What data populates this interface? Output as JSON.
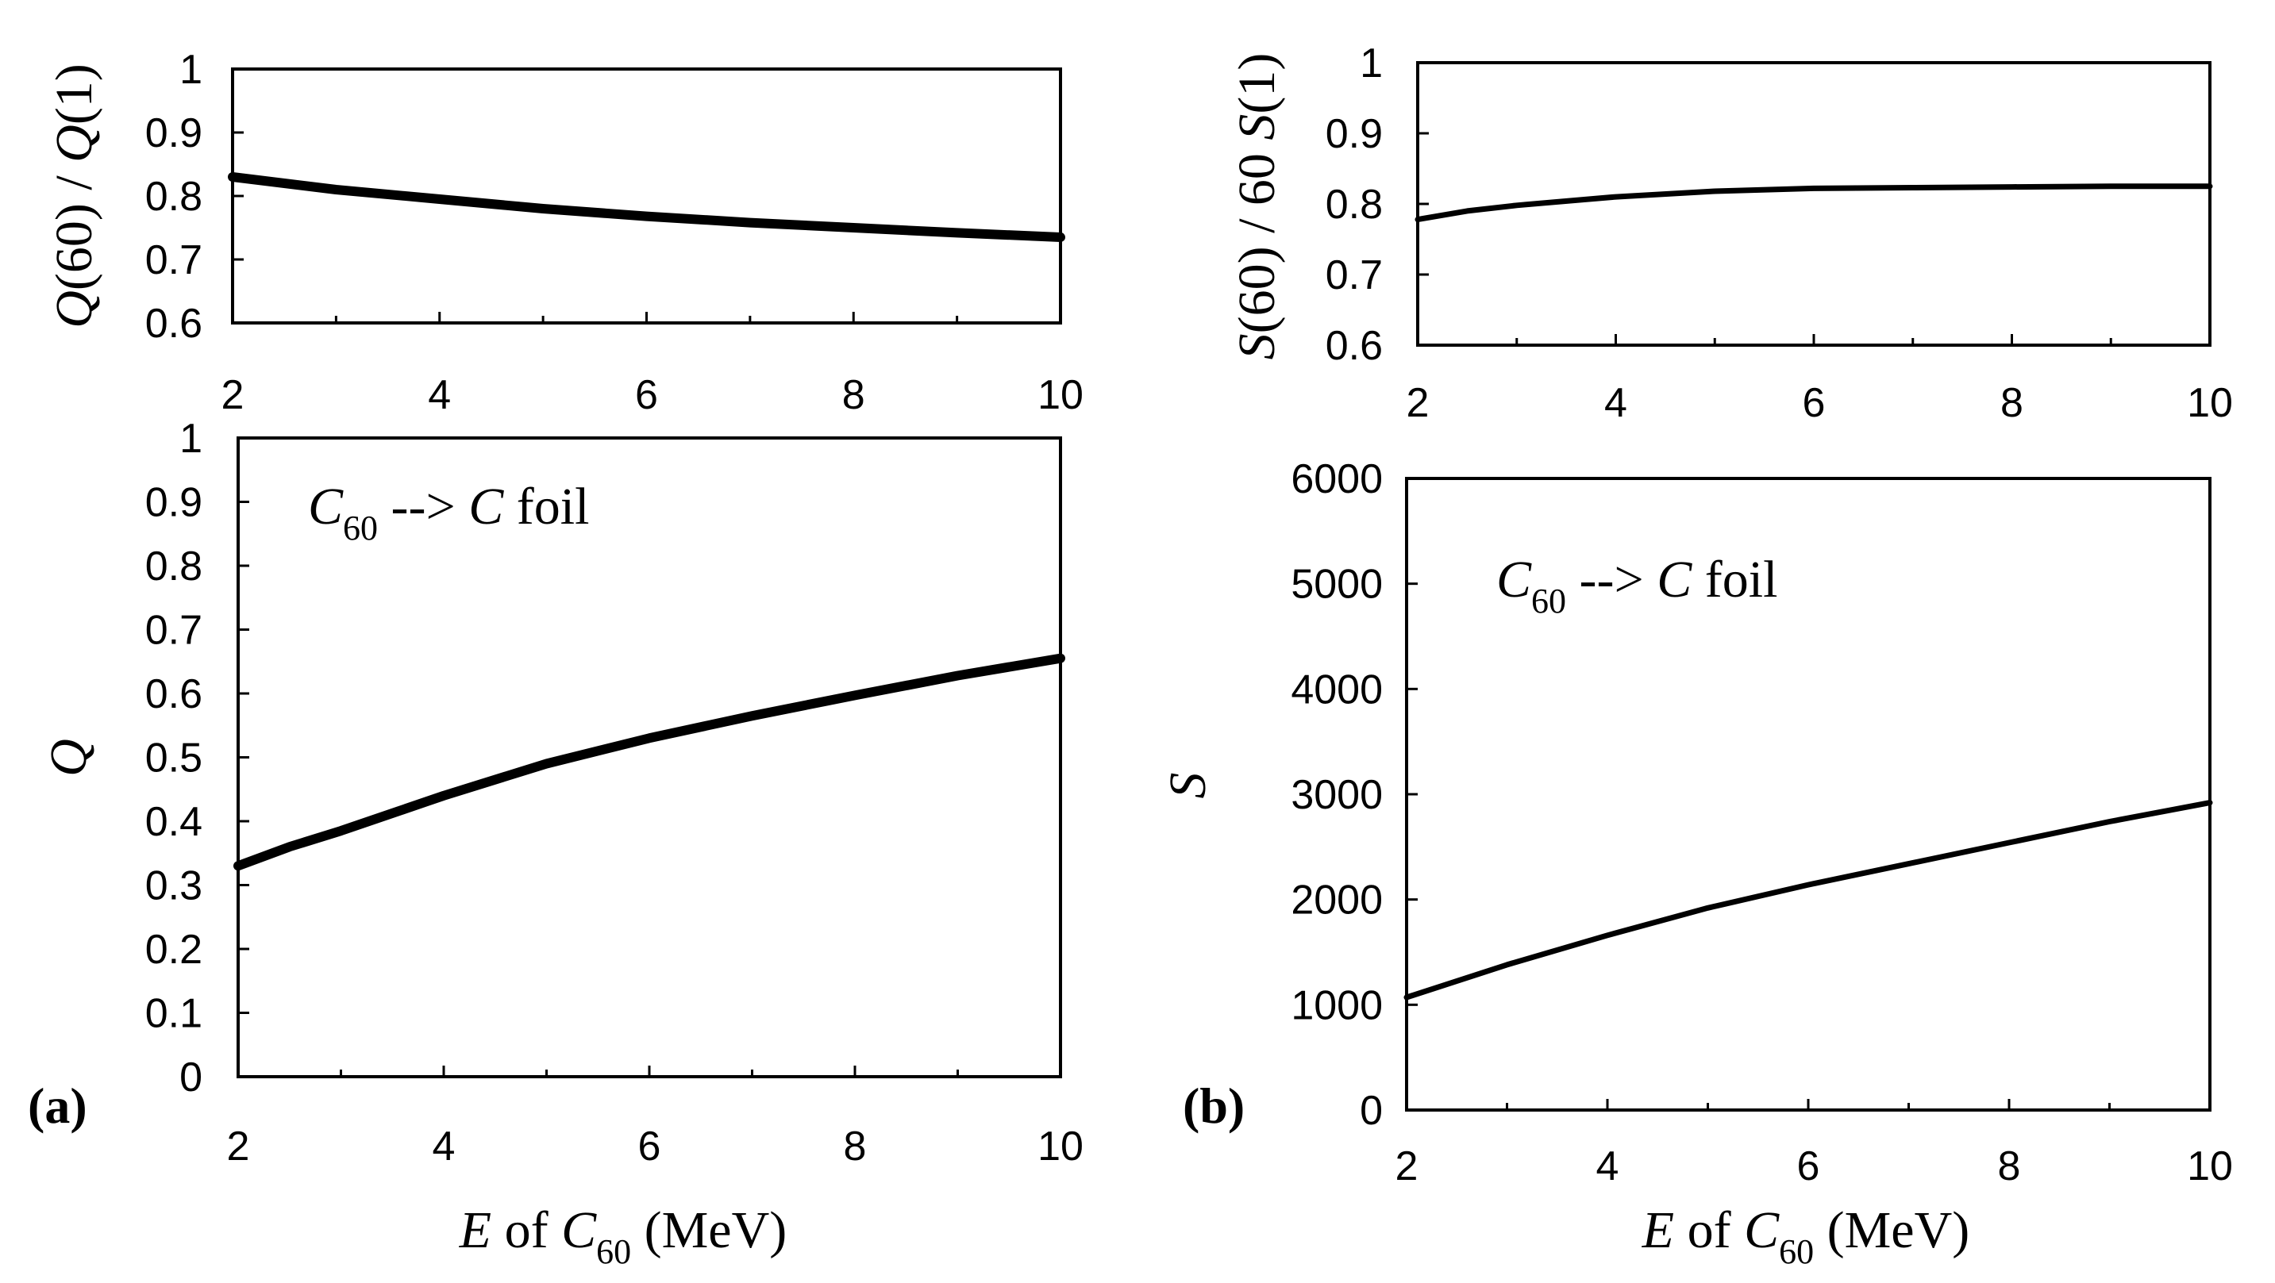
{
  "panels": {
    "a": {
      "label": "(a)"
    },
    "b": {
      "label": "(b)"
    }
  },
  "chart_data": [
    {
      "id": "a-top",
      "type": "line",
      "title": "",
      "xlabel": "",
      "ylabel_parts": [
        "Q",
        "(60) / ",
        "Q",
        "(1)"
      ],
      "xlim": [
        2,
        10
      ],
      "ylim": [
        0.6,
        1
      ],
      "xticks": [
        2,
        4,
        6,
        8,
        10
      ],
      "yticks": [
        0.6,
        0.7,
        0.8,
        0.9,
        1
      ],
      "ytick_labels": [
        "0.6",
        "0.7",
        "0.8",
        "0.9",
        "1"
      ],
      "series": [
        {
          "name": "Q(60)/Q(1)",
          "x": [
            2,
            3,
            4,
            5,
            6,
            7,
            8,
            9,
            10
          ],
          "y": [
            0.83,
            0.81,
            0.795,
            0.78,
            0.768,
            0.758,
            0.75,
            0.742,
            0.735
          ]
        }
      ]
    },
    {
      "id": "a-bottom",
      "type": "line",
      "title": "",
      "xlabel_parts": [
        "E",
        " of ",
        "C",
        "60",
        " (MeV)"
      ],
      "ylabel": "Q",
      "xlim": [
        2,
        10
      ],
      "ylim": [
        0,
        1
      ],
      "xticks": [
        2,
        4,
        6,
        8,
        10
      ],
      "yticks": [
        0,
        0.1,
        0.2,
        0.3,
        0.4,
        0.5,
        0.6,
        0.7,
        0.8,
        0.9,
        1
      ],
      "ytick_labels": [
        "0",
        "0.1",
        "0.2",
        "0.3",
        "0.4",
        "0.5",
        "0.6",
        "0.7",
        "0.8",
        "0.9",
        "1"
      ],
      "annotation_parts": [
        "C",
        "60",
        " --> ",
        "C",
        " foil"
      ],
      "series": [
        {
          "name": "Q",
          "x": [
            2,
            2.5,
            3,
            4,
            5,
            6,
            7,
            8,
            9,
            10
          ],
          "y": [
            0.33,
            0.36,
            0.385,
            0.44,
            0.49,
            0.53,
            0.565,
            0.597,
            0.628,
            0.655
          ]
        }
      ]
    },
    {
      "id": "b-top",
      "type": "line",
      "title": "",
      "xlabel": "",
      "ylabel_parts": [
        "S",
        "(60) / 60 ",
        "S",
        "(1)"
      ],
      "xlim": [
        2,
        10
      ],
      "ylim": [
        0.6,
        1
      ],
      "xticks": [
        2,
        4,
        6,
        8,
        10
      ],
      "yticks": [
        0.6,
        0.7,
        0.8,
        0.9,
        1
      ],
      "ytick_labels": [
        "0.6",
        "0.7",
        "0.8",
        "0.9",
        "1"
      ],
      "series": [
        {
          "name": "S(60)/60S(1)",
          "x": [
            2,
            2.5,
            3,
            4,
            5,
            6,
            7,
            8,
            9,
            10
          ],
          "y": [
            0.778,
            0.79,
            0.798,
            0.81,
            0.818,
            0.822,
            0.823,
            0.824,
            0.825,
            0.825
          ]
        }
      ]
    },
    {
      "id": "b-bottom",
      "type": "line",
      "title": "",
      "xlabel_parts": [
        "E",
        " of ",
        "C",
        "60",
        " (MeV)"
      ],
      "ylabel": "S",
      "xlim": [
        2,
        10
      ],
      "ylim": [
        0,
        6000
      ],
      "xticks": [
        2,
        4,
        6,
        8,
        10
      ],
      "yticks": [
        0,
        1000,
        2000,
        3000,
        4000,
        5000,
        6000
      ],
      "ytick_labels": [
        "0",
        "1000",
        "2000",
        "3000",
        "4000",
        "5000",
        "6000"
      ],
      "annotation_parts": [
        "C",
        "60",
        " --> ",
        "C",
        " foil"
      ],
      "series": [
        {
          "name": "S",
          "x": [
            2,
            3,
            4,
            5,
            6,
            7,
            8,
            9,
            10
          ],
          "y": [
            1070,
            1380,
            1660,
            1920,
            2140,
            2340,
            2540,
            2740,
            2920
          ]
        }
      ]
    }
  ]
}
